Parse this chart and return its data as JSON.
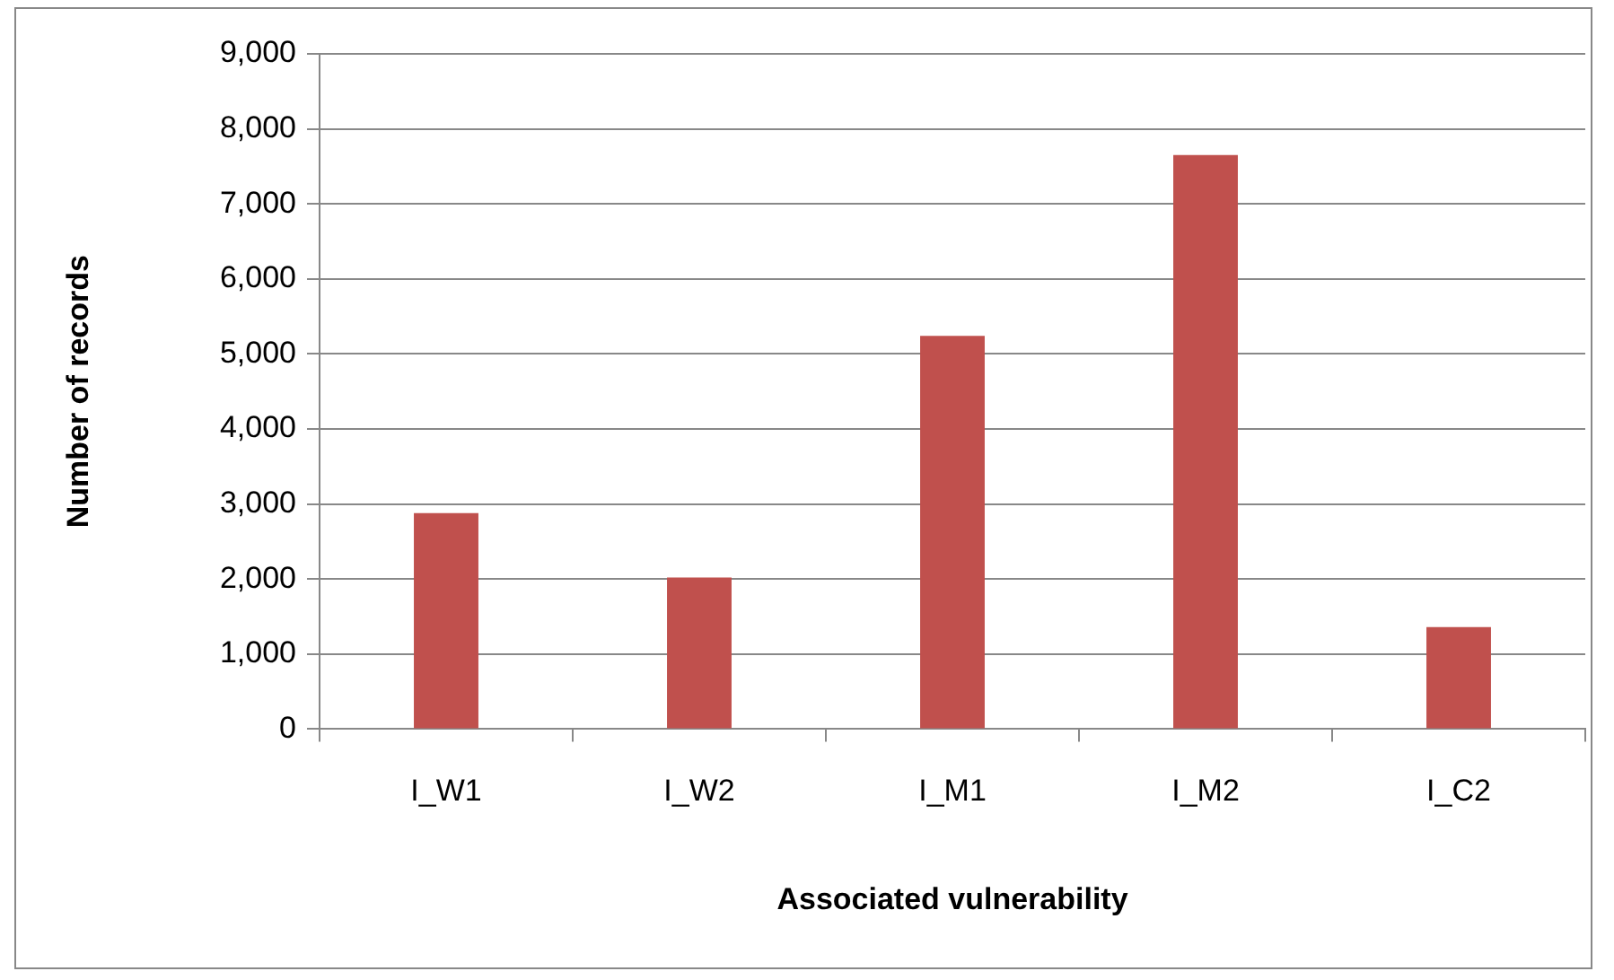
{
  "chart_data": {
    "type": "bar",
    "xlabel": "Associated vulnerability",
    "ylabel": "Number of records",
    "categories": [
      "I_W1",
      "I_W2",
      "I_M1",
      "I_M2",
      "I_C2"
    ],
    "values": [
      2880,
      2020,
      5240,
      7650,
      1360
    ],
    "color": "#c0504d",
    "ylim": [
      0,
      9000
    ],
    "yticks": [
      0,
      {
        "value": 1000,
        "label": "1,000"
      },
      {
        "value": 2000,
        "label": "2,000"
      },
      {
        "value": 3000,
        "label": "3,000"
      },
      {
        "value": 4000,
        "label": "4,000"
      },
      {
        "value": 5000,
        "label": "5,000"
      },
      {
        "value": 6000,
        "label": "6,000"
      },
      {
        "value": 7000,
        "label": "7,000"
      },
      {
        "value": 8000,
        "label": "8,000"
      },
      {
        "value": 9000,
        "label": "9,000"
      }
    ],
    "grid": "y",
    "legend": false
  }
}
